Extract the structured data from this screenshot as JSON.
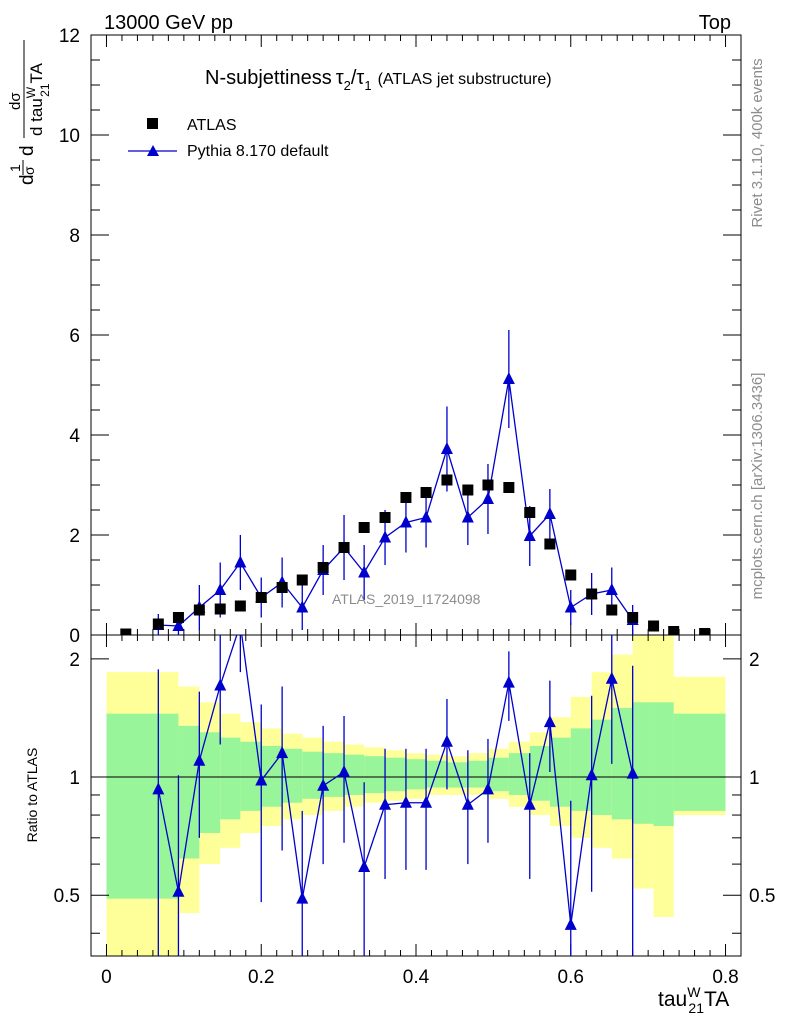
{
  "header": {
    "energy_label": "13000 GeV pp",
    "process_label": "Top"
  },
  "side_labels": {
    "rivet": "Rivet 3.1.10,  400k events",
    "mcplots": "mcplots.cern.ch [arXiv:1306.3436]"
  },
  "colors": {
    "mc": "#0000cc",
    "data": "#000000",
    "band_inner": "#99f599",
    "band_outer": "#ffff99"
  },
  "chart_data": {
    "type": "scatter",
    "title_main": "N-subjettiness",
    "title_tau2": "τ",
    "title_tau2_sub": "2",
    "title_slash": "/",
    "title_tau1": "τ",
    "title_tau1_sub": "1",
    "title_paren": "(ATLAS jet substructure)",
    "watermark": "ATLAS_2019_I1724098",
    "xlabel_main": "tau",
    "xlabel_sup": "W",
    "xlabel_sub": "21",
    "xlabel_tail": "TA",
    "ylabel_parts": [
      "d",
      "1",
      "σ",
      "d",
      "dσ",
      "d tau",
      "W",
      "21",
      "TA"
    ],
    "ratio_ylabel": "Ratio to ATLAS",
    "xlim": [
      -0.02,
      0.82
    ],
    "ylim": [
      0,
      12
    ],
    "ratio_ylim": [
      0.35,
      2.3
    ],
    "x_ticks": [
      "0",
      "0.2",
      "0.4",
      "0.6",
      "0.8"
    ],
    "y_ticks": [
      "0",
      "2",
      "4",
      "6",
      "8",
      "10",
      "12"
    ],
    "ratio_ticks": [
      "0.5",
      "1",
      "2"
    ],
    "legend": [
      {
        "name": "ATLAS",
        "marker": "square"
      },
      {
        "name": "Pythia 8.170 default",
        "marker": "triangle"
      }
    ],
    "data_series": {
      "name": "ATLAS",
      "x": [
        0.025,
        0.067,
        0.093,
        0.12,
        0.147,
        0.173,
        0.2,
        0.227,
        0.253,
        0.28,
        0.307,
        0.333,
        0.36,
        0.387,
        0.413,
        0.44,
        0.467,
        0.493,
        0.52,
        0.547,
        0.573,
        0.6,
        0.627,
        0.653,
        0.68,
        0.707,
        0.733,
        0.773
      ],
      "y": [
        0.02,
        0.22,
        0.35,
        0.5,
        0.52,
        0.58,
        0.75,
        0.95,
        1.1,
        1.35,
        1.75,
        2.15,
        2.35,
        2.75,
        2.85,
        3.1,
        2.9,
        3.0,
        2.95,
        2.45,
        1.82,
        1.2,
        0.82,
        0.5,
        0.35,
        0.18,
        0.07,
        0.03
      ]
    },
    "mc_series": {
      "name": "Pythia 8.170 default",
      "x": [
        0.067,
        0.093,
        0.12,
        0.147,
        0.173,
        0.2,
        0.227,
        0.253,
        0.28,
        0.307,
        0.333,
        0.36,
        0.387,
        0.413,
        0.44,
        0.467,
        0.493,
        0.52,
        0.547,
        0.573,
        0.6,
        0.627,
        0.653,
        0.68
      ],
      "y": [
        0.2,
        0.18,
        0.55,
        0.9,
        1.45,
        0.75,
        1.05,
        0.55,
        1.3,
        1.75,
        1.25,
        1.95,
        2.25,
        2.35,
        3.72,
        2.35,
        2.72,
        5.12,
        1.98,
        2.42,
        0.55,
        0.82,
        0.9,
        0.3
      ],
      "err": [
        0.22,
        0.25,
        0.45,
        0.55,
        0.55,
        0.4,
        0.5,
        0.45,
        0.5,
        0.65,
        0.55,
        0.55,
        0.6,
        0.6,
        0.85,
        0.55,
        0.7,
        0.98,
        0.6,
        0.5,
        0.35,
        0.42,
        0.45,
        0.3
      ]
    },
    "ratio_series": {
      "x": [
        0.067,
        0.093,
        0.12,
        0.147,
        0.173,
        0.2,
        0.227,
        0.253,
        0.28,
        0.307,
        0.333,
        0.36,
        0.387,
        0.413,
        0.44,
        0.467,
        0.493,
        0.52,
        0.547,
        0.573,
        0.6,
        0.627,
        0.653,
        0.68
      ],
      "y": [
        0.93,
        0.51,
        1.1,
        1.71,
        2.45,
        0.98,
        1.15,
        0.49,
        0.95,
        1.03,
        0.59,
        0.85,
        0.86,
        0.86,
        1.23,
        0.85,
        0.93,
        1.74,
        0.85,
        1.38,
        0.42,
        1.01,
        1.78,
        1.02
      ],
      "err_lo": [
        0.6,
        0.5,
        0.4,
        0.5,
        0.6,
        0.5,
        0.5,
        0.35,
        0.35,
        0.35,
        0.3,
        0.3,
        0.28,
        0.28,
        0.3,
        0.25,
        0.25,
        0.35,
        0.3,
        0.35,
        0.2,
        0.5,
        0.7,
        0.8
      ],
      "err_hi": [
        0.95,
        0.5,
        0.55,
        0.75,
        0.8,
        0.55,
        0.55,
        0.33,
        0.4,
        0.4,
        0.38,
        0.33,
        0.32,
        0.32,
        0.35,
        0.32,
        0.32,
        0.35,
        0.3,
        0.38,
        0.45,
        0.6,
        0.8,
        0.9
      ]
    },
    "bands": {
      "edges": [
        0.0,
        0.067,
        0.093,
        0.12,
        0.147,
        0.173,
        0.2,
        0.227,
        0.253,
        0.28,
        0.307,
        0.333,
        0.36,
        0.387,
        0.413,
        0.44,
        0.467,
        0.493,
        0.52,
        0.547,
        0.573,
        0.6,
        0.627,
        0.653,
        0.68,
        0.707,
        0.733,
        0.8
      ],
      "inner_lo": [
        0.49,
        0.49,
        0.62,
        0.72,
        0.78,
        0.82,
        0.84,
        0.86,
        0.88,
        0.89,
        0.9,
        0.91,
        0.92,
        0.93,
        0.94,
        0.94,
        0.94,
        0.92,
        0.9,
        0.87,
        0.84,
        0.82,
        0.8,
        0.78,
        0.76,
        0.75,
        0.82
      ],
      "inner_hi": [
        1.45,
        1.45,
        1.35,
        1.3,
        1.26,
        1.23,
        1.2,
        1.18,
        1.16,
        1.15,
        1.14,
        1.13,
        1.12,
        1.11,
        1.1,
        1.09,
        1.1,
        1.12,
        1.15,
        1.2,
        1.26,
        1.33,
        1.4,
        1.5,
        1.55,
        1.55,
        1.45
      ],
      "outer_lo": [
        0.35,
        0.35,
        0.45,
        0.6,
        0.66,
        0.72,
        0.75,
        0.78,
        0.8,
        0.82,
        0.84,
        0.86,
        0.87,
        0.88,
        0.9,
        0.9,
        0.9,
        0.88,
        0.84,
        0.8,
        0.75,
        0.7,
        0.66,
        0.62,
        0.52,
        0.44,
        0.8
      ],
      "outer_hi": [
        1.85,
        1.85,
        1.7,
        1.55,
        1.45,
        1.38,
        1.33,
        1.29,
        1.26,
        1.23,
        1.21,
        1.19,
        1.17,
        1.15,
        1.14,
        1.13,
        1.15,
        1.18,
        1.23,
        1.3,
        1.42,
        1.6,
        1.85,
        2.05,
        2.5,
        2.5,
        1.8
      ]
    }
  }
}
